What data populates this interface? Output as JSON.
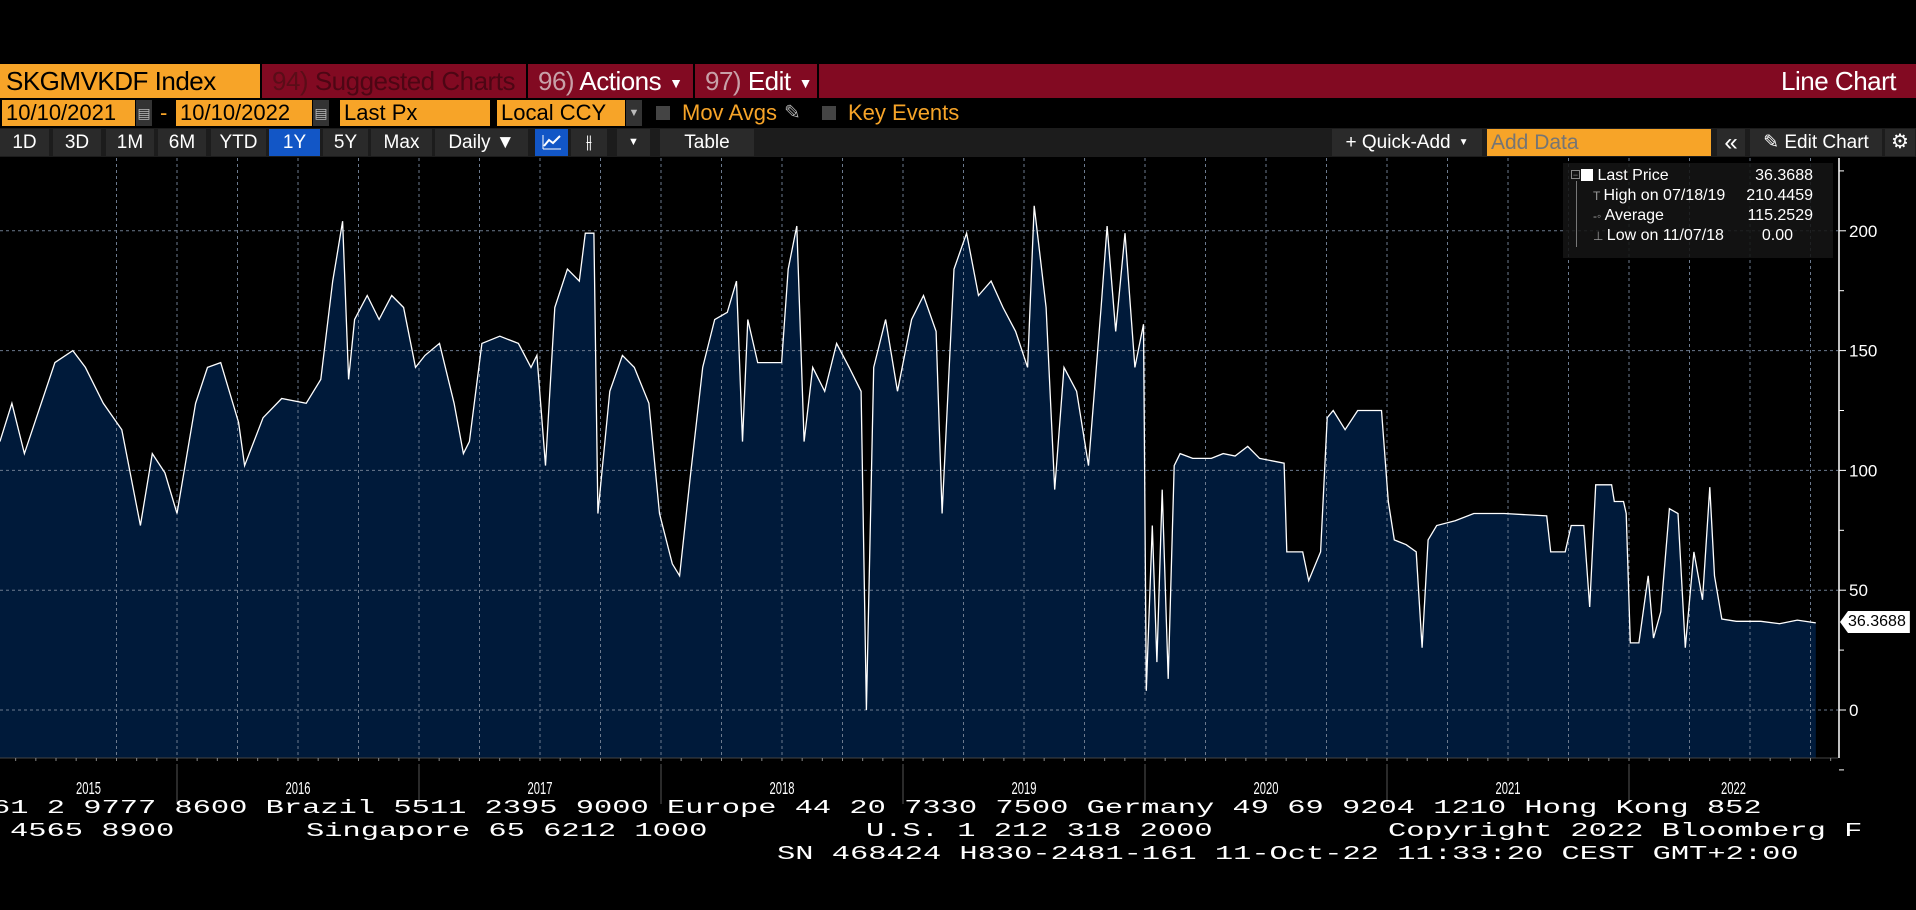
{
  "header": {
    "ticker": "SKGMVKDF Index",
    "suggested_num": "94)",
    "suggested_label": "Suggested Charts",
    "actions_num": "96)",
    "actions_label": "Actions",
    "edit_num": "97)",
    "edit_label": "Edit",
    "chart_type": "Line Chart"
  },
  "controls": {
    "start_date": "10/10/2021",
    "separator": "-",
    "end_date": "10/10/2022",
    "field": "Last Px",
    "currency": "Local CCY",
    "mov_avgs": "Mov Avgs",
    "key_events": "Key Events"
  },
  "toolbar": {
    "periods": [
      "1D",
      "3D",
      "1M",
      "6M",
      "YTD",
      "1Y",
      "5Y",
      "Max"
    ],
    "active_period": "1Y",
    "frequency": "Daily ▼",
    "table": "Table",
    "quick_add": "+ Quick-Add",
    "add_data_placeholder": "Add Data",
    "collapse": "«",
    "edit_chart": "Edit Chart"
  },
  "legend": {
    "last_price_label": "Last Price",
    "last_price_value": "36.3688",
    "high_label": "High on 07/18/19",
    "high_value": "210.4459",
    "average_label": "Average",
    "average_value": "115.2529",
    "low_label": "Low on 11/07/18",
    "low_value": "0.00"
  },
  "last_price_tag": "36.3688",
  "footer": {
    "line1": "61 2 9777 8600 Brazil 5511 2395 9000 Europe 44 20 7330 7500 Germany 49 69 9204 1210 Hong Kong 852",
    "line2a": "4565 8900",
    "line2b": "Singapore 65 6212 1000",
    "line2c": "U.S. 1 212 318 2000",
    "line2d": "Copyright 2022 Bloomberg F",
    "line3": "SN 468424 H830-2481-161 11-Oct-22 11:33:20 CEST GMT+2:00"
  },
  "colors": {
    "accent_orange": "#f7a428",
    "header_red": "#820a22",
    "active_blue": "#1256c6",
    "area_fill": "#001a3a",
    "line": "#ffffff"
  },
  "chart_data": {
    "type": "area",
    "y_axis_side": "right",
    "ylim": [
      -20,
      230
    ],
    "y_ticks": [
      0,
      50,
      100,
      150,
      200
    ],
    "x_tick_labels": [
      "2015",
      "2016",
      "2017",
      "2018",
      "2019",
      "2020",
      "2021",
      "2022"
    ],
    "grid": true,
    "series": [
      {
        "name": "Last Price",
        "dates": [
          "2015-04-09",
          "2015-04-27",
          "2015-05-16",
          "2015-06-03",
          "2015-07-01",
          "2015-07-28",
          "2015-08-16",
          "2015-09-12",
          "2015-10-10",
          "2015-11-07",
          "2015-11-25",
          "2015-12-14",
          "2016-01-01",
          "2016-01-29",
          "2016-02-16",
          "2016-03-07",
          "2016-04-03",
          "2016-04-12",
          "2016-05-10",
          "2016-06-07",
          "2016-07-14",
          "2016-08-05",
          "2016-08-23",
          "2016-08-29",
          "2016-09-07",
          "2016-09-16",
          "2016-09-25",
          "2016-10-14",
          "2016-11-01",
          "2016-11-20",
          "2016-12-08",
          "2016-12-26",
          "2017-01-10",
          "2017-02-01",
          "2017-02-23",
          "2017-03-09",
          "2017-03-18",
          "2017-04-06",
          "2017-05-03",
          "2017-05-31",
          "2017-06-19",
          "2017-06-28",
          "2017-07-11",
          "2017-07-25",
          "2017-08-13",
          "2017-08-31",
          "2017-09-09",
          "2017-09-22",
          "2017-09-28",
          "2017-10-16",
          "2017-11-04",
          "2017-11-22",
          "2017-12-14",
          "2017-12-30",
          "2018-01-18",
          "2018-01-29",
          "2018-02-14",
          "2018-03-05",
          "2018-03-23",
          "2018-04-11",
          "2018-04-25",
          "2018-05-04",
          "2018-05-12",
          "2018-05-27",
          "2018-07-02",
          "2018-07-12",
          "2018-07-25",
          "2018-08-05",
          "2018-08-18",
          "2018-09-05",
          "2018-09-23",
          "2018-10-12",
          "2018-10-30",
          "2018-11-07",
          "2018-11-18",
          "2018-12-06",
          "2018-12-24",
          "2019-01-14",
          "2019-02-01",
          "2019-02-20",
          "2019-03-01",
          "2019-03-19",
          "2019-04-07",
          "2019-04-25",
          "2019-05-14",
          "2019-06-01",
          "2019-06-20",
          "2019-07-08",
          "2019-07-18",
          "2019-08-05",
          "2019-08-18",
          "2019-09-01",
          "2019-09-20",
          "2019-10-08",
          "2019-10-27",
          "2019-11-05",
          "2019-11-18",
          "2019-12-02",
          "2019-12-17",
          "2019-12-30",
          "2020-01-03",
          "2020-01-12",
          "2020-01-19",
          "2020-01-27",
          "2020-02-05",
          "2020-02-14",
          "2020-02-23",
          "2020-03-13",
          "2020-04-10",
          "2020-04-28",
          "2020-05-16",
          "2020-06-04",
          "2020-06-22",
          "2020-07-29",
          "2020-08-02",
          "2020-08-26",
          "2020-09-04",
          "2020-09-22",
          "2020-10-02",
          "2020-10-11",
          "2020-10-29",
          "2020-11-17",
          "2020-12-23",
          "2021-01-03",
          "2021-01-12",
          "2021-01-30",
          "2021-02-14",
          "2021-02-23",
          "2021-03-04",
          "2021-03-17",
          "2021-04-14",
          "2021-05-12",
          "2021-06-27",
          "2021-08-30",
          "2021-09-05",
          "2021-09-27",
          "2021-10-06",
          "2021-10-25",
          "2021-11-03",
          "2021-11-12",
          "2021-12-06",
          "2021-12-10",
          "2021-12-24",
          "2021-12-28",
          "2022-01-03",
          "2022-01-16",
          "2022-01-30",
          "2022-02-07",
          "2022-02-18",
          "2022-03-03",
          "2022-03-16",
          "2022-03-27",
          "2022-04-09",
          "2022-04-22",
          "2022-05-03",
          "2022-05-10",
          "2022-05-21",
          "2022-06-12",
          "2022-07-19",
          "2022-08-16",
          "2022-09-12",
          "2022-10-10"
        ],
        "values": [
          112,
          128,
          107,
          122,
          145,
          150,
          143,
          128,
          117,
          77,
          107,
          99,
          82,
          128,
          143,
          145,
          120,
          102,
          122,
          130,
          128,
          138,
          179,
          189,
          204,
          138,
          163,
          173,
          163,
          173,
          168,
          143,
          148,
          153,
          128,
          107,
          112,
          153,
          156,
          153,
          143,
          148,
          102,
          168,
          184,
          179,
          199,
          199,
          82,
          133,
          148,
          143,
          128,
          82,
          61,
          56,
          97,
          143,
          163,
          166,
          179,
          112,
          163,
          145,
          145,
          184,
          202,
          112,
          143,
          133,
          153,
          143,
          133,
          0,
          143,
          163,
          133,
          163,
          173,
          158,
          82,
          184,
          199,
          173,
          179,
          168,
          158,
          143,
          210.4459,
          168,
          92,
          143,
          133,
          102,
          168,
          202,
          158,
          199,
          143,
          161,
          8,
          77,
          20,
          92,
          13,
          102,
          107,
          105,
          105,
          107,
          106,
          110,
          105,
          103,
          66,
          66,
          54,
          66,
          122,
          125,
          117,
          125,
          125,
          87,
          71,
          69,
          66,
          26,
          71,
          77,
          79,
          82,
          82,
          81,
          66,
          66,
          77,
          77,
          43,
          94,
          94,
          87,
          87,
          82,
          28,
          28,
          56,
          30,
          41,
          84,
          82,
          26,
          66,
          46,
          93,
          56,
          38,
          37,
          37,
          36,
          37.5,
          36.3688
        ]
      }
    ]
  }
}
